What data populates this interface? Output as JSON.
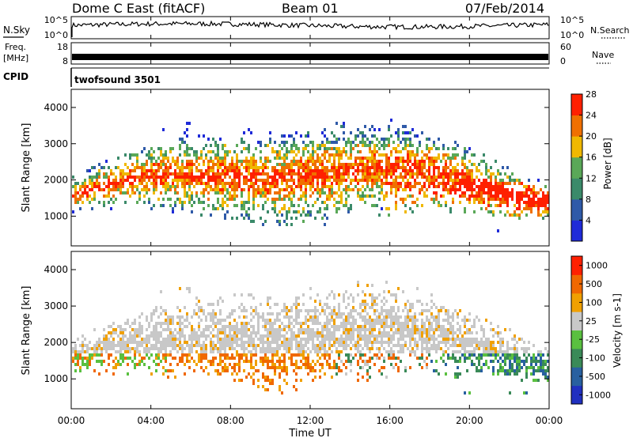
{
  "header": {
    "title": "Dome C East (fitACF)",
    "beam": "Beam 01",
    "date": "07/Feb/2014"
  },
  "top_panels": {
    "nsky_label": "N.Sky",
    "nsky_ticks": [
      "10^5",
      "10^0"
    ],
    "nsearch_label": "N.Search",
    "nsearch_ticks": [
      "10^5",
      "10^0"
    ],
    "freq_label_line1": "Freq.",
    "freq_label_line2": "[MHz]",
    "freq_ticks": [
      "18",
      "8"
    ],
    "nave_label": "Nave",
    "nave_ticks": [
      "60",
      "0"
    ],
    "cpid_label": "CPID",
    "cpid_text": "twofsound 3501"
  },
  "chart_data": [
    {
      "type": "heatmap",
      "name": "power",
      "ylabel": "Slant Range [km]",
      "yticks": [
        1000,
        2000,
        3000,
        4000
      ],
      "ylim": [
        180,
        4500
      ],
      "xlim": [
        0,
        24
      ],
      "colorbar": {
        "label": "Power [dB]",
        "ticks": [
          "4",
          "8",
          "12",
          "16",
          "20",
          "24",
          "28"
        ],
        "colors": [
          "#1f2bd8",
          "#2f5aa8",
          "#3b8a6a",
          "#5aa858",
          "#f0b800",
          "#f07000",
          "#ff2000"
        ]
      }
    },
    {
      "type": "heatmap",
      "name": "velocity",
      "ylabel": "Slant Range [km]",
      "yticks": [
        1000,
        2000,
        3000,
        4000
      ],
      "ylim": [
        180,
        4500
      ],
      "xlim": [
        0,
        24
      ],
      "colorbar": {
        "label": "Velocity [m s-1]",
        "ticks": [
          "1000",
          "500",
          "100",
          "25",
          "-25",
          "-100",
          "-500",
          "-1000"
        ],
        "colors": [
          "#2030c0",
          "#2860a0",
          "#3a8a58",
          "#5ac040",
          "#c8c8c8",
          "#f0a000",
          "#f06800",
          "#ff2000"
        ]
      }
    }
  ],
  "x_axis": {
    "label": "Time UT",
    "ticks": [
      "00:00",
      "04:00",
      "08:00",
      "12:00",
      "16:00",
      "20:00",
      "00:00"
    ]
  }
}
